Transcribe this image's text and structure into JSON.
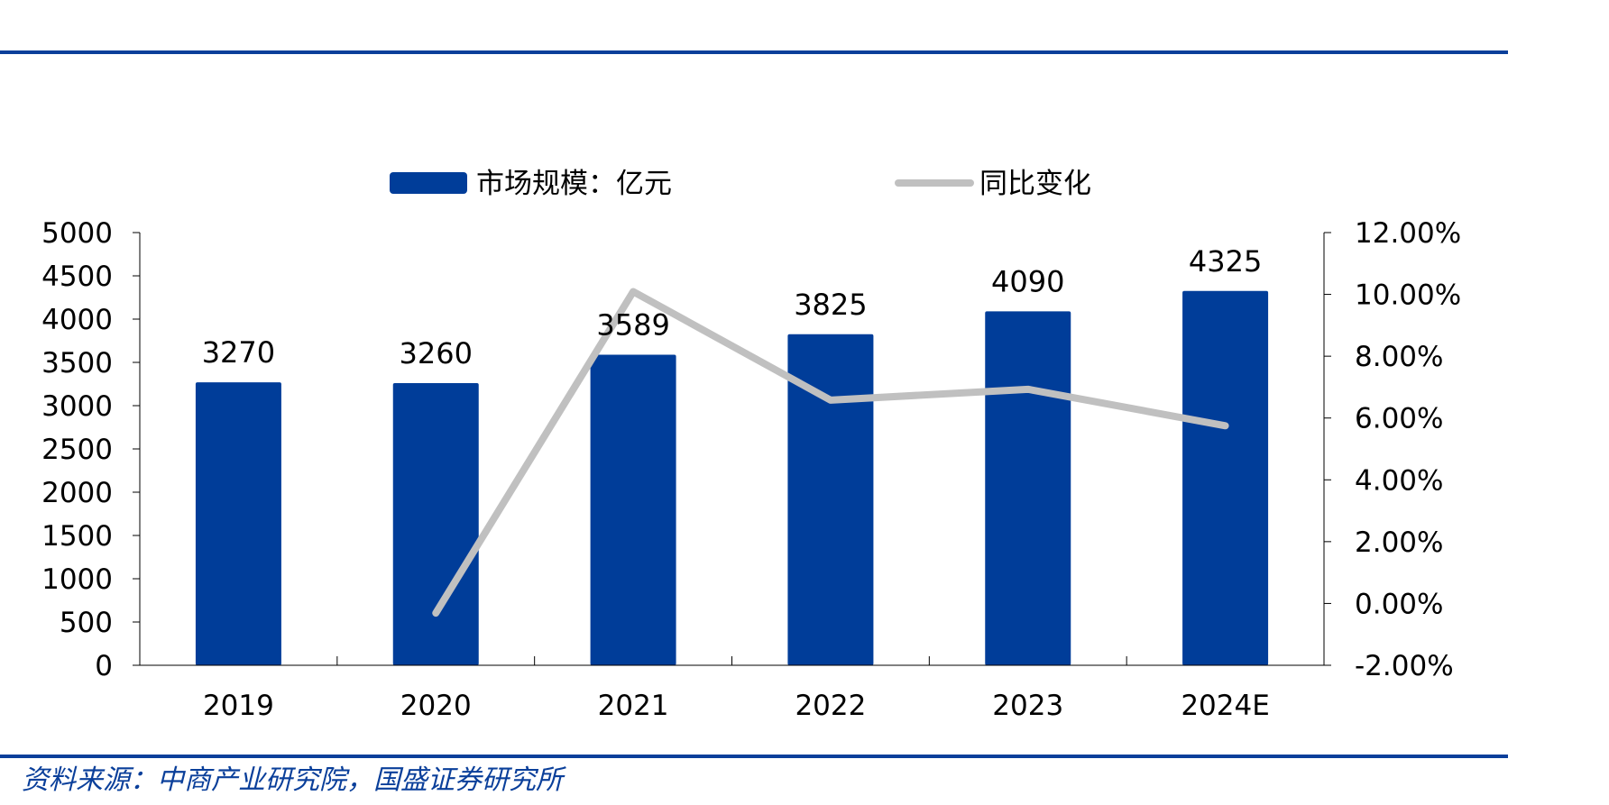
{
  "colors": {
    "rule": "#0a3f9a",
    "bar": "#003d99",
    "line": "#c0c0c0",
    "axis": "#000000",
    "text": "#000000"
  },
  "legend": {
    "bar_label": "市场规模：亿元",
    "line_label": "同比变化"
  },
  "source": "资料来源：中商产业研究院，国盛证券研究所",
  "chart_data": {
    "type": "bar",
    "categories": [
      "2019",
      "2020",
      "2021",
      "2022",
      "2023",
      "2024E"
    ],
    "series": [
      {
        "name": "市场规模：亿元",
        "type": "bar",
        "axis": "left",
        "values": [
          3270,
          3260,
          3589,
          3825,
          4090,
          4325
        ],
        "data_labels": [
          "3270",
          "3260",
          "3589",
          "3825",
          "4090",
          "4325"
        ]
      },
      {
        "name": "同比变化",
        "type": "line",
        "axis": "right",
        "values": [
          null,
          -0.31,
          10.09,
          6.58,
          6.93,
          5.75
        ]
      }
    ],
    "y_left": {
      "min": 0,
      "max": 5000,
      "ticks": [
        0,
        500,
        1000,
        1500,
        2000,
        2500,
        3000,
        3500,
        4000,
        4500,
        5000
      ],
      "tick_labels": [
        "0",
        "500",
        "1000",
        "1500",
        "2000",
        "2500",
        "3000",
        "3500",
        "4000",
        "4500",
        "5000"
      ]
    },
    "y_right": {
      "min": -2,
      "max": 12,
      "ticks": [
        -2,
        0,
        2,
        4,
        6,
        8,
        10,
        12
      ],
      "tick_labels": [
        "-2.00%",
        "0.00%",
        "2.00%",
        "4.00%",
        "6.00%",
        "8.00%",
        "10.00%",
        "12.00%"
      ]
    },
    "legend_position": "top",
    "grid": false
  }
}
